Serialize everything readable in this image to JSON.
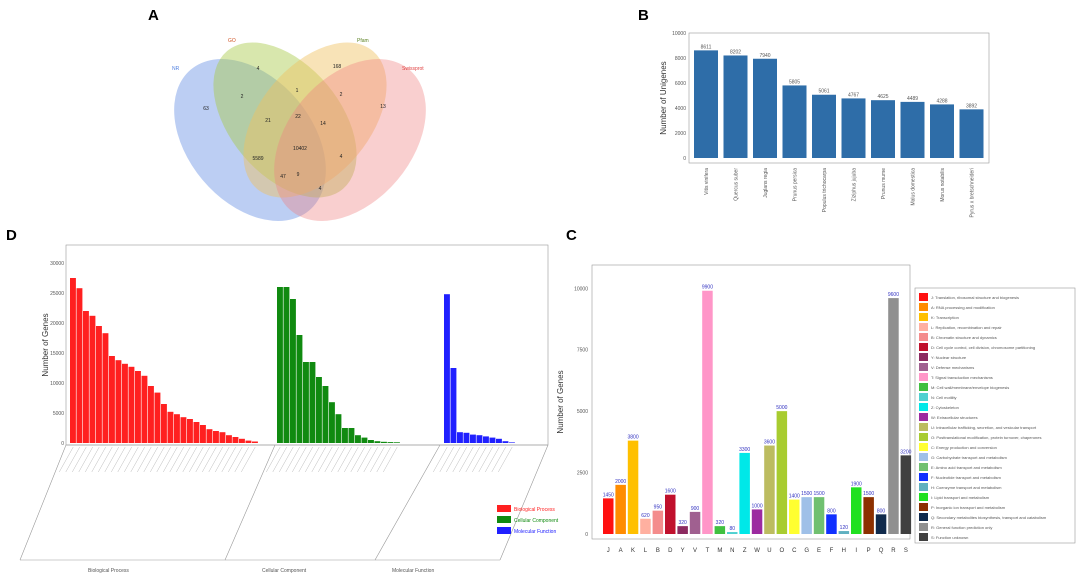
{
  "panel_labels": {
    "A": "A",
    "B": "B",
    "C": "C",
    "D": "D"
  },
  "chart_data": [
    {
      "panel": "A",
      "type": "venn",
      "sets": [
        {
          "name": "NR",
          "color": "#4f7fe0"
        },
        {
          "name": "GO",
          "color": "#a8c94a"
        },
        {
          "name": "Pfam",
          "color": "#f0c060"
        },
        {
          "name": "Swissprot",
          "color": "#f08080"
        }
      ],
      "region_values": [
        "63",
        "4",
        "2",
        "1",
        "168",
        "2",
        "13",
        "21",
        "22",
        "14",
        "10402",
        "5589",
        "47",
        "4",
        "9",
        "4"
      ]
    },
    {
      "panel": "B",
      "type": "bar",
      "ylabel": "Number of Unigenes",
      "ylim": [
        0,
        10000
      ],
      "yticks": [
        "10000",
        "8000",
        "6000",
        "4000",
        "2000",
        "0"
      ],
      "categories": [
        "Vitis vinifera",
        "Quercus suber",
        "Juglans regia",
        "Prunus persica",
        "Populus trichocarpa",
        "Ziziphus jujuba",
        "Prunus mume",
        "Malus domestica",
        "Morus notabilis",
        "Pyrus x bretschneideri"
      ],
      "values": [
        8611,
        8202,
        7940,
        5805,
        5061,
        4767,
        4625,
        4489,
        4288,
        3892
      ],
      "labels": [
        "8611",
        "8202",
        "7940",
        "5805",
        "5061",
        "4767",
        "4625",
        "4489",
        "4288",
        "3892"
      ],
      "color": "#2e6da8"
    },
    {
      "panel": "C",
      "type": "bar",
      "ylabel": "Number of Genes",
      "ylim": [
        0,
        10500
      ],
      "yticks": [
        "10000",
        "7500",
        "5000",
        "2500",
        "0"
      ],
      "categories": [
        "J",
        "A",
        "K",
        "L",
        "B",
        "D",
        "Y",
        "V",
        "T",
        "M",
        "N",
        "Z",
        "W",
        "U",
        "O",
        "C",
        "G",
        "E",
        "F",
        "H",
        "I",
        "P",
        "Q",
        "R",
        "S"
      ],
      "values": [
        1450,
        2000,
        3800,
        620,
        950,
        1600,
        320,
        900,
        9900,
        320,
        80,
        3300,
        1000,
        3600,
        5000,
        1400,
        1500,
        1500,
        800,
        120,
        1900,
        1500,
        800,
        9600,
        3200
      ],
      "labels": [
        "1450",
        "2000",
        "3800",
        "620",
        "950",
        "1600",
        "320",
        "900",
        "9900",
        "320",
        "80",
        "3300",
        "1000",
        "3600",
        "5000",
        "1400",
        "1500",
        "1500",
        "800",
        "120",
        "1900",
        "1500",
        "800",
        "9600",
        "3200"
      ],
      "colors": [
        "#ff1010",
        "#ff8c00",
        "#ffc000",
        "#ffb0a0",
        "#f48c8c",
        "#c0102c",
        "#8c2a60",
        "#a06090",
        "#ff96c8",
        "#40c040",
        "#50d0d0",
        "#00e8e8",
        "#9c2aa0",
        "#bcbc60",
        "#a8cc30",
        "#ffff30",
        "#9fc0e8",
        "#70c070",
        "#1030ff",
        "#60b0c0",
        "#20e020",
        "#8c3000",
        "#102a4c",
        "#909090",
        "#404040"
      ],
      "legend": [
        "J: Translation, ribosomal structure and biogenesis",
        "A: RNA processing and modification",
        "K: Transcription",
        "L: Replication, recombination and repair",
        "B: Chromatin structure and dynamics",
        "D: Cell cycle control, cell division, chromosome partitioning",
        "Y: Nuclear structure",
        "V: Defense mechanisms",
        "T: Signal transduction mechanisms",
        "M: Cell wall/membrane/envelope biogenesis",
        "N: Cell motility",
        "Z: Cytoskeleton",
        "W: Extracellular structures",
        "U: Intracellular trafficking, secretion, and vesicular transport",
        "O: Posttranslational modification, protein turnover, chaperones",
        "C: Energy production and conversion",
        "G: Carbohydrate transport and metabolism",
        "E: Amino acid transport and metabolism",
        "F: Nucleotide transport and metabolism",
        "H: Coenzyme transport and metabolism",
        "I: Lipid transport and metabolism",
        "P: Inorganic ion transport and metabolism",
        "Q: Secondary metabolites biosynthesis, transport and catabolism",
        "R: General function prediction only",
        "S: Function unknown"
      ]
    },
    {
      "panel": "D",
      "type": "bar",
      "ylabel": "Number of Genes",
      "ylim": [
        0,
        30000
      ],
      "yticks": [
        "30000",
        "25000",
        "20000",
        "15000",
        "10000",
        "5000",
        "0"
      ],
      "groups": [
        {
          "name": "Biological Process",
          "color": "#ff2020",
          "values": [
            27500,
            25800,
            22000,
            21200,
            19500,
            18300,
            14500,
            13800,
            13200,
            12700,
            12000,
            11200,
            9500,
            8400,
            6500,
            5200,
            4800,
            4300,
            4000,
            3500,
            3000,
            2300,
            2000,
            1800,
            1300,
            1000,
            700,
            400,
            250
          ]
        },
        {
          "name": "Cellular Component",
          "color": "#108a10",
          "values": [
            26000,
            26000,
            24000,
            18000,
            13500,
            13500,
            11000,
            9500,
            6800,
            4800,
            2500,
            2500,
            1300,
            900,
            500,
            300,
            200,
            150,
            120
          ]
        },
        {
          "name": "Molecular Function",
          "color": "#2020ff",
          "values": [
            24800,
            12500,
            1800,
            1700,
            1400,
            1300,
            1100,
            900,
            700,
            300,
            100
          ]
        }
      ]
    }
  ]
}
